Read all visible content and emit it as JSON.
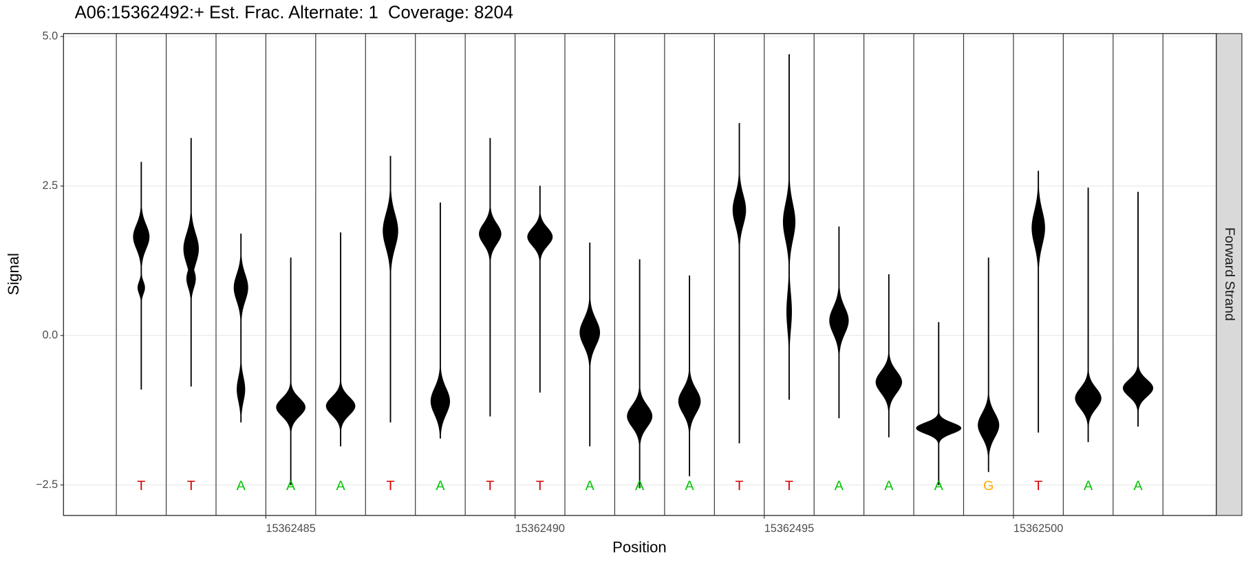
{
  "chart_data": {
    "type": "violin",
    "title": "A06:15362492:+ Est. Frac. Alternate: 1  Coverage: 8204",
    "x_label": "Position",
    "y_label": "Signal",
    "facet_label": "Forward Strand",
    "xlim": [
      15362480.94,
      15362504.07
    ],
    "ylim": [
      -3.01,
      5.05
    ],
    "xticks": [
      15362485,
      15362490,
      15362495,
      15362500
    ],
    "yticks": [
      {
        "value": 5.0,
        "label": "5.0"
      },
      2.5,
      {
        "value": 0.0,
        "label": "0.0"
      },
      {
        "value": -2.5,
        "label": "−2.5"
      }
    ],
    "grid": true,
    "base_label_y": -2.5,
    "base_colors": {
      "T": "#d40000",
      "A": "#00c400",
      "G": "#ffad00"
    },
    "violin_color": "#000000",
    "x": [
      15362482.5,
      15362483.5,
      15362484.5,
      15362485.5,
      15362486.5,
      15362487.5,
      15362488.5,
      15362489.5,
      15362490.5,
      15362491.5,
      15362492.5,
      15362493.5,
      15362494.5,
      15362495.5,
      15362496.5,
      15362497.5,
      15362498.5,
      15362499.5,
      15362500.5,
      15362501.5,
      15362502.5
    ],
    "bases": [
      "T",
      "T",
      "A",
      "A",
      "A",
      "T",
      "A",
      "T",
      "T",
      "A",
      "A",
      "A",
      "T",
      "T",
      "A",
      "A",
      "A",
      "G",
      "T",
      "A",
      "A"
    ],
    "violins": [
      {
        "min": -0.9,
        "max": 2.9,
        "modes": [
          {
            "y": 1.65,
            "width": 0.16,
            "sd": 0.2
          },
          {
            "y": 0.8,
            "width": 0.07,
            "sd": 0.1
          }
        ]
      },
      {
        "min": -0.85,
        "max": 3.3,
        "modes": [
          {
            "y": 1.45,
            "width": 0.15,
            "sd": 0.25
          },
          {
            "y": 0.95,
            "width": 0.09,
            "sd": 0.15
          }
        ]
      },
      {
        "min": -1.45,
        "max": 1.7,
        "modes": [
          {
            "y": 0.8,
            "width": 0.14,
            "sd": 0.22
          },
          {
            "y": -0.9,
            "width": 0.08,
            "sd": 0.2
          }
        ]
      },
      {
        "min": -2.5,
        "max": 1.3,
        "modes": [
          {
            "y": -1.2,
            "width": 0.29,
            "sd": 0.15
          }
        ]
      },
      {
        "min": -1.85,
        "max": 1.72,
        "modes": [
          {
            "y": -1.18,
            "width": 0.29,
            "sd": 0.15
          }
        ]
      },
      {
        "min": -1.45,
        "max": 3.0,
        "modes": [
          {
            "y": 1.75,
            "width": 0.15,
            "sd": 0.28
          }
        ]
      },
      {
        "min": -1.72,
        "max": 2.22,
        "modes": [
          {
            "y": -1.1,
            "width": 0.19,
            "sd": 0.22
          }
        ]
      },
      {
        "min": -1.35,
        "max": 3.3,
        "modes": [
          {
            "y": 1.7,
            "width": 0.22,
            "sd": 0.17
          }
        ]
      },
      {
        "min": -0.95,
        "max": 2.5,
        "modes": [
          {
            "y": 1.65,
            "width": 0.25,
            "sd": 0.15
          }
        ]
      },
      {
        "min": -1.85,
        "max": 1.55,
        "modes": [
          {
            "y": 0.05,
            "width": 0.2,
            "sd": 0.22
          }
        ]
      },
      {
        "min": -2.55,
        "max": 1.27,
        "modes": [
          {
            "y": -1.35,
            "width": 0.25,
            "sd": 0.18
          }
        ]
      },
      {
        "min": -2.35,
        "max": 1.0,
        "modes": [
          {
            "y": -1.1,
            "width": 0.22,
            "sd": 0.2
          }
        ]
      },
      {
        "min": -1.8,
        "max": 3.55,
        "modes": [
          {
            "y": 2.1,
            "width": 0.13,
            "sd": 0.25
          }
        ]
      },
      {
        "min": -1.07,
        "max": 4.7,
        "modes": [
          {
            "y": 1.9,
            "width": 0.12,
            "sd": 0.3
          },
          {
            "y": 0.4,
            "width": 0.05,
            "sd": 0.3
          }
        ]
      },
      {
        "min": -1.38,
        "max": 1.82,
        "modes": [
          {
            "y": 0.25,
            "width": 0.19,
            "sd": 0.22
          }
        ]
      },
      {
        "min": -1.7,
        "max": 1.02,
        "modes": [
          {
            "y": -0.78,
            "width": 0.26,
            "sd": 0.18
          }
        ]
      },
      {
        "min": -2.5,
        "max": 0.22,
        "modes": [
          {
            "y": -1.55,
            "width": 0.45,
            "sd": 0.09
          }
        ]
      },
      {
        "min": -2.28,
        "max": 1.3,
        "modes": [
          {
            "y": -1.5,
            "width": 0.21,
            "sd": 0.2
          }
        ]
      },
      {
        "min": -1.62,
        "max": 2.75,
        "modes": [
          {
            "y": 1.8,
            "width": 0.13,
            "sd": 0.28
          }
        ]
      },
      {
        "min": -1.78,
        "max": 2.47,
        "modes": [
          {
            "y": -1.05,
            "width": 0.26,
            "sd": 0.17
          }
        ]
      },
      {
        "min": -1.52,
        "max": 2.4,
        "modes": [
          {
            "y": -0.88,
            "width": 0.3,
            "sd": 0.14
          }
        ]
      }
    ]
  }
}
